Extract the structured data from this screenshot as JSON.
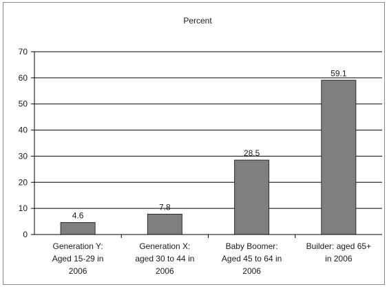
{
  "chart_data": {
    "type": "bar",
    "title": "Percent",
    "categories": [
      [
        "Generation Y:",
        "Aged 15-29 in",
        "2006"
      ],
      [
        "Generation X:",
        "aged 30 to 44 in",
        "2006"
      ],
      [
        "Baby Boomer:",
        "Aged 45 to 64 in",
        "2006"
      ],
      [
        "Builder: aged 65+",
        "in 2006"
      ]
    ],
    "values": [
      4.6,
      7.8,
      28.5,
      59.1
    ],
    "value_labels": [
      "4.6",
      "7.8",
      "28.5",
      "59.1"
    ],
    "ylim": [
      0,
      70
    ],
    "yticks": [
      0,
      10,
      20,
      30,
      40,
      50,
      60,
      70
    ],
    "grid": true,
    "xlabel": "",
    "ylabel": "",
    "colors": {
      "bar": "#7f7f7f",
      "bar_edge": "#2b2b2b",
      "grid": "#000000",
      "axis": "#000000"
    }
  }
}
